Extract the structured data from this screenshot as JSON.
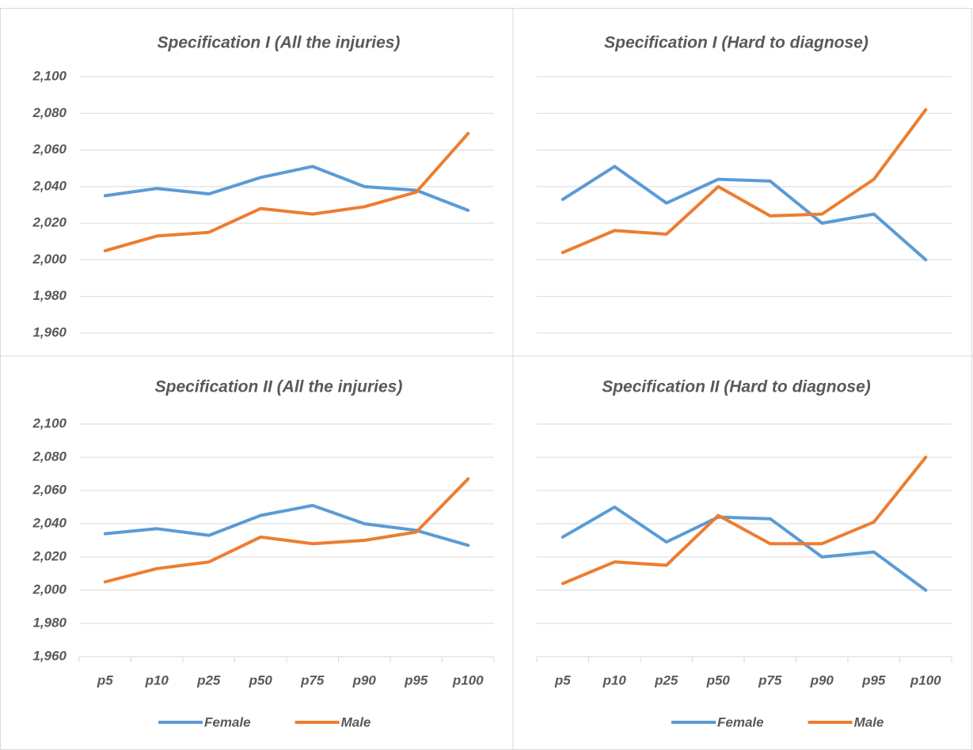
{
  "chart_data": [
    {
      "type": "line",
      "title": "Specification I (All the injuries)",
      "series": [
        {
          "color": "#5b9bd5",
          "values": [
            2035,
            2039,
            2036,
            2045,
            2051,
            2040,
            2038,
            2027
          ]
        },
        {
          "color": "#ed7d31",
          "values": [
            2005,
            2013,
            2015,
            2028,
            2025,
            2029,
            2037,
            2069
          ]
        }
      ],
      "ylim": [
        1960,
        2100
      ],
      "yticks": [
        {
          "value": 1960,
          "label": "1,960"
        },
        {
          "value": 1980,
          "label": "1,980"
        },
        {
          "value": 2000,
          "label": "2,000"
        },
        {
          "value": 2020,
          "label": "2,020"
        },
        {
          "value": 2040,
          "label": "2,040"
        },
        {
          "value": 2060,
          "label": "2,060"
        },
        {
          "value": 2080,
          "label": "2,080"
        },
        {
          "value": 2100,
          "label": "2,100"
        }
      ],
      "grid": true
    },
    {
      "type": "line",
      "title": "Specification I (Hard to diagnose)",
      "series": [
        {
          "color": "#5b9bd5",
          "values": [
            2033,
            2051,
            2031,
            2044,
            2043,
            2020,
            2025,
            2000
          ]
        },
        {
          "color": "#ed7d31",
          "values": [
            2004,
            2016,
            2014,
            2040,
            2024,
            2025,
            2044,
            2082
          ]
        }
      ],
      "ylim": [
        1960,
        2100
      ],
      "yticks": [
        1960,
        1980,
        2000,
        2020,
        2040,
        2060,
        2080,
        2100
      ],
      "grid": true
    },
    {
      "type": "line",
      "title": "Specification II (All the injuries)",
      "categories": [
        "p5",
        "p10",
        "p25",
        "p50",
        "p75",
        "p90",
        "p95",
        "p100"
      ],
      "series": [
        {
          "name": "Female",
          "color": "#5b9bd5",
          "values": [
            2034,
            2037,
            2033,
            2045,
            2051,
            2040,
            2036,
            2027
          ]
        },
        {
          "name": "Male",
          "color": "#ed7d31",
          "values": [
            2005,
            2013,
            2017,
            2032,
            2028,
            2030,
            2035,
            2067
          ]
        }
      ],
      "ylim": [
        1960,
        2100
      ],
      "yticks": [
        {
          "value": 1960,
          "label": "1,960"
        },
        {
          "value": 1980,
          "label": "1,980"
        },
        {
          "value": 2000,
          "label": "2,000"
        },
        {
          "value": 2020,
          "label": "2,020"
        },
        {
          "value": 2040,
          "label": "2,040"
        },
        {
          "value": 2060,
          "label": "2,060"
        },
        {
          "value": 2080,
          "label": "2,080"
        },
        {
          "value": 2100,
          "label": "2,100"
        }
      ],
      "grid": true,
      "legend": "bottom"
    },
    {
      "type": "line",
      "title": "Specification II (Hard to diagnose)",
      "categories": [
        "p5",
        "p10",
        "p25",
        "p50",
        "p75",
        "p90",
        "p95",
        "p100"
      ],
      "series": [
        {
          "name": "Female",
          "color": "#5b9bd5",
          "values": [
            2032,
            2050,
            2029,
            2044,
            2043,
            2020,
            2023,
            2000
          ]
        },
        {
          "name": "Male",
          "color": "#ed7d31",
          "values": [
            2004,
            2017,
            2015,
            2045,
            2028,
            2028,
            2041,
            2080
          ]
        }
      ],
      "ylim": [
        1960,
        2100
      ],
      "yticks": [
        1960,
        1980,
        2000,
        2020,
        2040,
        2060,
        2080,
        2100
      ],
      "grid": true,
      "legend": "bottom"
    }
  ]
}
